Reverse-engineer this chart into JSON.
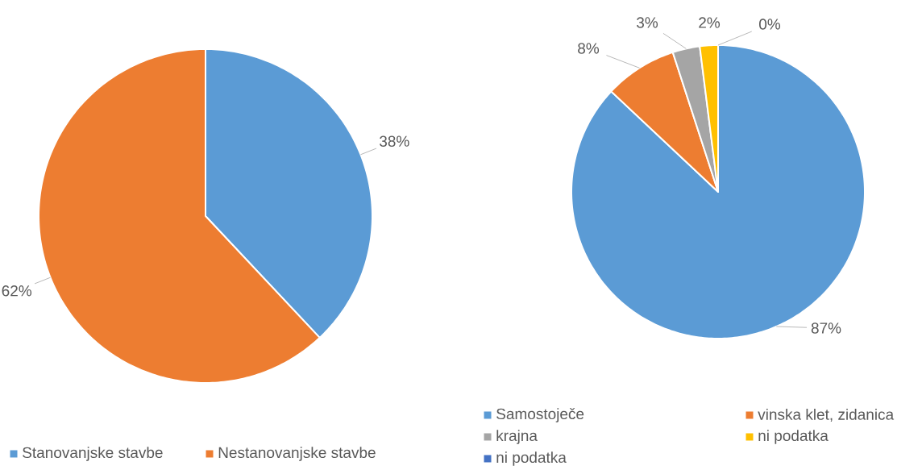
{
  "chart_data": [
    {
      "type": "pie",
      "categories": [
        "Stanovanjske stavbe",
        "Nestanovanjske stavbe"
      ],
      "values": [
        38,
        62
      ],
      "colors": [
        "#5b9bd5",
        "#ed7d31"
      ],
      "value_labels": [
        "38%",
        "62%"
      ],
      "legend": "bottom"
    },
    {
      "type": "pie",
      "categories": [
        "Samostoječe",
        "vinska klet, zidanica",
        "krajna",
        "ni podatka",
        "ni podatka"
      ],
      "values": [
        87,
        8,
        3,
        2,
        0
      ],
      "colors": [
        "#5b9bd5",
        "#ed7d31",
        "#a5a5a5",
        "#ffc000",
        "#4472c4"
      ],
      "value_labels": [
        "87%",
        "8%",
        "3%",
        "2%",
        "0%"
      ],
      "legend": "bottom"
    }
  ]
}
